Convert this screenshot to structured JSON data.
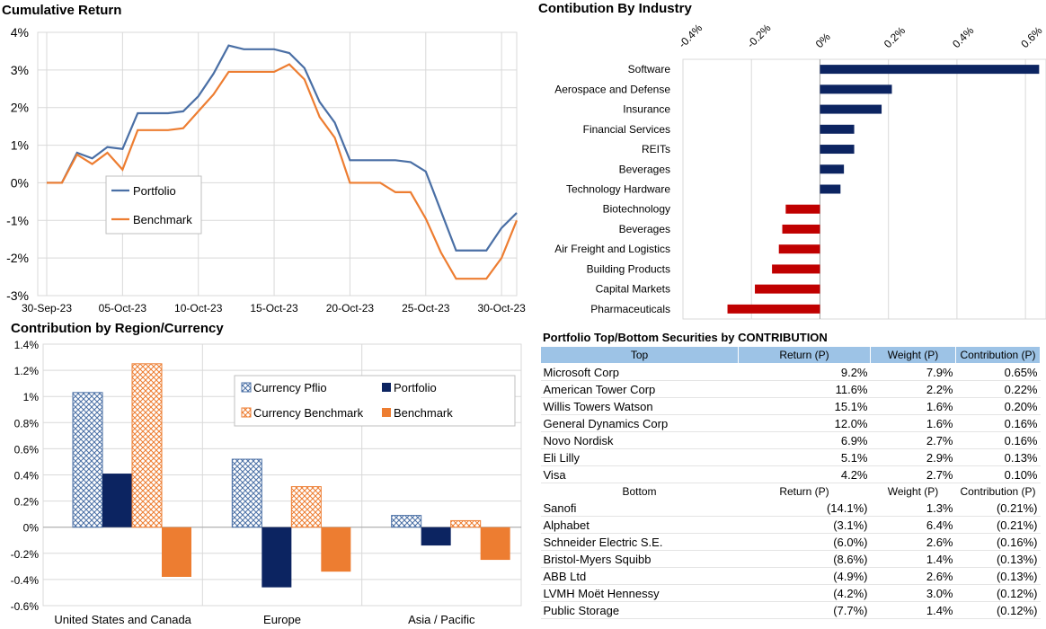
{
  "titles": {
    "cumulative": "Cumulative Return",
    "industry": "Contibution By Industry",
    "region": "Contribution by Region/Currency",
    "table": "Portfolio Top/Bottom Securities by CONTRIBUTION"
  },
  "chart_data": [
    {
      "type": "line",
      "title": "Cumulative Return",
      "x": [
        "30-Sep-23",
        "01-Oct-23",
        "02-Oct-23",
        "03-Oct-23",
        "04-Oct-23",
        "05-Oct-23",
        "06-Oct-23",
        "07-Oct-23",
        "08-Oct-23",
        "09-Oct-23",
        "10-Oct-23",
        "11-Oct-23",
        "12-Oct-23",
        "13-Oct-23",
        "14-Oct-23",
        "15-Oct-23",
        "16-Oct-23",
        "17-Oct-23",
        "18-Oct-23",
        "19-Oct-23",
        "20-Oct-23",
        "21-Oct-23",
        "22-Oct-23",
        "23-Oct-23",
        "24-Oct-23",
        "25-Oct-23",
        "26-Oct-23",
        "27-Oct-23",
        "28-Oct-23",
        "29-Oct-23",
        "30-Oct-23",
        "31-Oct-23"
      ],
      "x_tick_labels": [
        "30-Sep-23",
        "05-Oct-23",
        "10-Oct-23",
        "15-Oct-23",
        "20-Oct-23",
        "25-Oct-23",
        "30-Oct-23"
      ],
      "series": [
        {
          "name": "Portfolio",
          "color": "#4a6fa5",
          "values": [
            0.0,
            0.0,
            0.8,
            0.65,
            0.95,
            0.9,
            1.85,
            1.85,
            1.85,
            1.9,
            2.3,
            2.9,
            3.65,
            3.55,
            3.55,
            3.55,
            3.45,
            3.05,
            2.15,
            1.6,
            0.6,
            0.6,
            0.6,
            0.6,
            0.55,
            0.3,
            -0.75,
            -1.8,
            -1.8,
            -1.8,
            -1.2,
            -0.8
          ]
        },
        {
          "name": "Benchmark",
          "color": "#ed7d31",
          "values": [
            0.0,
            0.0,
            0.75,
            0.5,
            0.8,
            0.35,
            1.4,
            1.4,
            1.4,
            1.45,
            1.9,
            2.35,
            2.95,
            2.95,
            2.95,
            2.95,
            3.15,
            2.75,
            1.75,
            1.2,
            0.0,
            0.0,
            0.0,
            -0.25,
            -0.25,
            -0.95,
            -1.85,
            -2.55,
            -2.55,
            -2.55,
            -2.0,
            -1.0
          ]
        }
      ],
      "y_ticks": [
        "4%",
        "3%",
        "2%",
        "1%",
        "0%",
        "-1%",
        "-2%",
        "-3%"
      ],
      "ylim": [
        -3,
        4
      ],
      "legend": "center-left"
    },
    {
      "type": "bar",
      "orientation": "horizontal",
      "title": "Contibution By Industry",
      "categories": [
        "Software",
        "Aerospace and Defense",
        "Insurance",
        "Financial Services",
        "REITs",
        "Beverages",
        "Technology Hardware",
        "Biotechnology",
        "Beverages",
        "Air Freight and Logistics",
        "Building Products",
        "Capital Markets",
        "Pharmaceuticals"
      ],
      "values": [
        0.64,
        0.21,
        0.18,
        0.1,
        0.1,
        0.07,
        0.06,
        -0.1,
        -0.11,
        -0.12,
        -0.14,
        -0.19,
        -0.27
      ],
      "x_ticks": [
        "-0.4%",
        "-0.2%",
        "0%",
        "0.2%",
        "0.4%",
        "0.6%"
      ],
      "xlim": [
        -0.4,
        0.66
      ],
      "positive_color": "#0c2461",
      "negative_color": "#c00000"
    },
    {
      "type": "bar",
      "title": "Contribution by Region/Currency",
      "categories": [
        "United States and Canada",
        "Europe",
        "Asia / Pacific"
      ],
      "series": [
        {
          "name": "Currency Pflio",
          "values": [
            1.03,
            0.52,
            0.09
          ],
          "color": "#4a6fa5",
          "pattern": "hatch"
        },
        {
          "name": "Portfolio",
          "values": [
            0.41,
            -0.46,
            -0.14
          ],
          "color": "#0c2461",
          "pattern": "solid"
        },
        {
          "name": "Currency Benchmark",
          "values": [
            1.25,
            0.31,
            0.05
          ],
          "color": "#ed7d31",
          "pattern": "hatch"
        },
        {
          "name": "Benchmark",
          "values": [
            -0.38,
            -0.34,
            -0.25
          ],
          "color": "#ed7d31",
          "pattern": "solid"
        }
      ],
      "y_ticks": [
        "1.4%",
        "1.2%",
        "1%",
        "0.8%",
        "0.6%",
        "0.4%",
        "0.2%",
        "0%",
        "-0.2%",
        "-0.4%",
        "-0.6%"
      ],
      "ylim": [
        -0.6,
        1.4
      ],
      "legend": "top-right"
    },
    {
      "type": "table",
      "title": "Portfolio Top/Bottom Securities by CONTRIBUTION",
      "top_header": [
        "Top",
        "Return (P)",
        "Weight (P)",
        "Contribution (P)"
      ],
      "top_rows": [
        [
          "Microsoft Corp",
          "9.2%",
          "7.9%",
          "0.65%"
        ],
        [
          "American Tower Corp",
          "11.6%",
          "2.2%",
          "0.22%"
        ],
        [
          "Willis Towers Watson",
          "15.1%",
          "1.6%",
          "0.20%"
        ],
        [
          "General Dynamics Corp",
          "12.0%",
          "1.6%",
          "0.16%"
        ],
        [
          "Novo Nordisk",
          "6.9%",
          "2.7%",
          "0.16%"
        ],
        [
          "Eli Lilly",
          "5.1%",
          "2.9%",
          "0.13%"
        ],
        [
          "Visa",
          "4.2%",
          "2.7%",
          "0.10%"
        ]
      ],
      "bottom_header": [
        "Bottom",
        "Return (P)",
        "Weight (P)",
        "Contribution (P)"
      ],
      "bottom_rows": [
        [
          "Sanofi",
          "(14.1%)",
          "1.3%",
          "(0.21%)"
        ],
        [
          "Alphabet",
          "(3.1%)",
          "6.4%",
          "(0.21%)"
        ],
        [
          "Schneider Electric S.E.",
          "(6.0%)",
          "2.6%",
          "(0.16%)"
        ],
        [
          "Bristol-Myers Squibb",
          "(8.6%)",
          "1.4%",
          "(0.13%)"
        ],
        [
          "ABB Ltd",
          "(4.9%)",
          "2.6%",
          "(0.13%)"
        ],
        [
          "LVMH Moët Hennessy",
          "(4.2%)",
          "3.0%",
          "(0.12%)"
        ],
        [
          "Public Storage",
          "(7.7%)",
          "1.4%",
          "(0.12%)"
        ]
      ]
    }
  ]
}
